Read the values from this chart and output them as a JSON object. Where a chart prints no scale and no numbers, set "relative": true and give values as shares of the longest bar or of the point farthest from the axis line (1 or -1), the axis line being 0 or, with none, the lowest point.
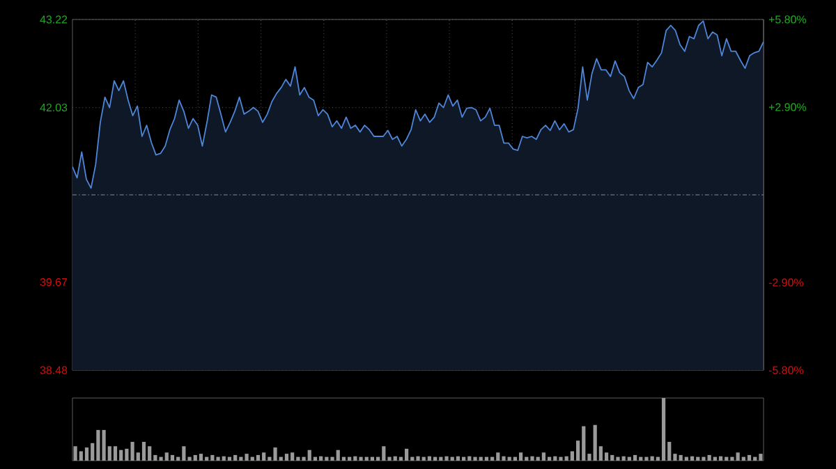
{
  "chart_data": [
    {
      "type": "area",
      "categories": [
        null,
        null,
        null,
        null,
        null,
        null,
        null,
        null,
        null,
        null,
        null,
        null,
        null,
        null,
        null,
        null,
        null,
        null,
        null,
        null,
        null,
        null,
        null,
        null,
        null,
        null,
        null,
        null,
        null,
        null,
        null,
        null,
        null,
        null,
        null,
        null,
        null,
        null,
        null,
        null,
        null,
        null,
        null,
        null,
        null,
        null,
        null,
        null,
        null,
        null,
        null,
        null,
        null,
        null,
        null,
        null,
        null,
        null,
        null,
        null,
        null,
        null,
        null,
        null,
        null,
        null,
        null,
        null,
        null,
        null,
        null,
        null,
        null,
        null,
        null,
        null,
        null,
        null,
        null,
        null,
        null,
        null,
        null,
        null,
        null,
        null,
        null,
        null,
        null,
        null,
        null,
        null,
        null,
        null,
        null,
        null,
        null,
        null,
        null,
        null,
        null,
        null,
        null,
        null,
        null,
        null,
        null,
        null,
        null,
        null,
        null,
        null,
        null,
        null,
        null,
        null,
        null,
        null,
        null,
        null,
        null,
        null,
        null,
        null,
        null,
        null,
        null,
        null,
        null,
        null,
        null,
        null,
        null,
        null,
        null,
        null,
        null,
        null,
        null,
        null,
        null,
        null,
        null,
        null,
        null,
        null,
        null,
        null,
        null,
        null
      ],
      "ylim": [
        38.48,
        43.22
      ],
      "yticks": [
        38.48,
        39.67,
        42.03,
        43.22
      ],
      "y2lim": [
        -5.8,
        5.8
      ],
      "y2ticks": [
        {
          "value": -5.8,
          "label": "-5.80%"
        },
        {
          "value": -2.9,
          "label": "-2.90%"
        },
        {
          "value": 2.9,
          "label": "+2.90%"
        },
        {
          "value": 5.8,
          "label": "+5.80%"
        }
      ],
      "grid": true,
      "ref_lines": [
        {
          "axis": "y",
          "value": 40.85,
          "color": "#8c8c8c",
          "line_style": "dashed"
        }
      ],
      "series": [
        {
          "color": "#4f86d9",
          "values": [
            41.23,
            41.08,
            41.43,
            41.06,
            40.94,
            41.26,
            41.83,
            42.17,
            42.03,
            42.39,
            42.26,
            42.39,
            42.13,
            41.92,
            42.05,
            41.64,
            41.79,
            41.56,
            41.39,
            41.41,
            41.51,
            41.73,
            41.88,
            42.13,
            41.98,
            41.75,
            41.88,
            41.79,
            41.51,
            41.83,
            42.2,
            42.17,
            41.94,
            41.7,
            41.83,
            41.98,
            42.17,
            41.94,
            41.98,
            42.03,
            41.98,
            41.83,
            41.94,
            42.11,
            42.22,
            42.3,
            42.41,
            42.32,
            42.58,
            42.2,
            42.3,
            42.17,
            42.13,
            41.92,
            42.0,
            41.94,
            41.77,
            41.85,
            41.75,
            41.9,
            41.75,
            41.79,
            41.7,
            41.79,
            41.73,
            41.64,
            41.64,
            41.64,
            41.72,
            41.6,
            41.64,
            41.51,
            41.6,
            41.73,
            42.0,
            41.85,
            41.94,
            41.83,
            41.9,
            42.09,
            42.03,
            42.2,
            42.05,
            42.13,
            41.9,
            42.02,
            42.03,
            42.0,
            41.85,
            41.9,
            42.02,
            41.79,
            41.79,
            41.55,
            41.55,
            41.47,
            41.45,
            41.64,
            41.62,
            41.64,
            41.6,
            41.73,
            41.79,
            41.72,
            41.85,
            41.73,
            41.81,
            41.7,
            41.73,
            42.02,
            42.58,
            42.13,
            42.49,
            42.69,
            42.54,
            42.54,
            42.45,
            42.66,
            42.5,
            42.45,
            42.26,
            42.15,
            42.3,
            42.34,
            42.64,
            42.58,
            42.67,
            42.77,
            43.07,
            43.14,
            43.07,
            42.88,
            42.79,
            42.99,
            42.96,
            43.14,
            43.2,
            42.96,
            43.05,
            43.01,
            42.73,
            42.96,
            42.79,
            42.79,
            42.67,
            42.56,
            42.73,
            42.77,
            42.79,
            42.92
          ]
        }
      ]
    },
    {
      "type": "bar",
      "relative": true,
      "color": "#9a9a9a",
      "categories": [
        null,
        null,
        null,
        null,
        null,
        null,
        null,
        null,
        null,
        null,
        null,
        null,
        null,
        null,
        null,
        null,
        null,
        null,
        null,
        null,
        null,
        null,
        null,
        null,
        null,
        null,
        null,
        null,
        null,
        null,
        null,
        null,
        null,
        null,
        null,
        null,
        null,
        null,
        null,
        null,
        null,
        null,
        null,
        null,
        null,
        null,
        null,
        null,
        null,
        null,
        null,
        null,
        null,
        null,
        null,
        null,
        null,
        null,
        null,
        null,
        null,
        null,
        null,
        null,
        null,
        null,
        null,
        null,
        null,
        null,
        null,
        null,
        null,
        null,
        null,
        null,
        null,
        null,
        null,
        null,
        null,
        null,
        null,
        null,
        null,
        null,
        null,
        null,
        null,
        null,
        null,
        null,
        null,
        null,
        null,
        null,
        null,
        null,
        null,
        null,
        null,
        null,
        null,
        null,
        null,
        null,
        null,
        null,
        null,
        null,
        null,
        null,
        null,
        null,
        null,
        null,
        null,
        null,
        null,
        null,
        null
      ],
      "values": [
        0.23,
        0.15,
        0.21,
        0.28,
        0.49,
        0.49,
        0.23,
        0.23,
        0.17,
        0.19,
        0.3,
        0.13,
        0.3,
        0.23,
        0.09,
        0.06,
        0.13,
        0.09,
        0.06,
        0.23,
        0.06,
        0.09,
        0.11,
        0.06,
        0.09,
        0.06,
        0.07,
        0.06,
        0.09,
        0.06,
        0.11,
        0.06,
        0.09,
        0.13,
        0.06,
        0.21,
        0.06,
        0.11,
        0.13,
        0.06,
        0.06,
        0.17,
        0.06,
        0.07,
        0.06,
        0.06,
        0.17,
        0.06,
        0.06,
        0.07,
        0.06,
        0.06,
        0.06,
        0.06,
        0.23,
        0.06,
        0.07,
        0.06,
        0.19,
        0.06,
        0.07,
        0.06,
        0.07,
        0.06,
        0.06,
        0.07,
        0.06,
        0.07,
        0.06,
        0.07,
        0.06,
        0.06,
        0.06,
        0.06,
        0.13,
        0.07,
        0.06,
        0.06,
        0.13,
        0.06,
        0.07,
        0.06,
        0.13,
        0.06,
        0.07,
        0.06,
        0.07,
        0.15,
        0.32,
        0.55,
        0.11,
        0.57,
        0.23,
        0.13,
        0.09,
        0.06,
        0.07,
        0.06,
        0.09,
        0.06,
        0.06,
        0.07,
        0.06,
        1,
        0.3,
        0.11,
        0.09,
        0.06,
        0.07,
        0.06,
        0.06,
        0.09,
        0.06,
        0.07,
        0.06,
        0.06,
        0.13,
        0.06,
        0.09,
        0.06,
        0.11
      ]
    }
  ]
}
